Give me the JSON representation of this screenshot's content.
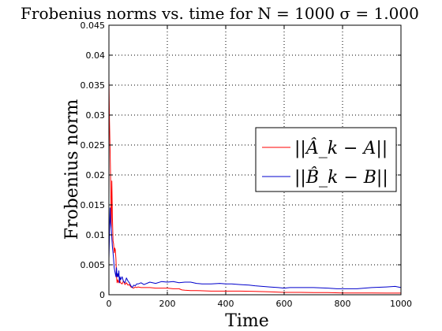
{
  "chart_data": {
    "type": "line",
    "title": "Frobenius norms vs. time for N = 1000 σ = 1.000",
    "xlabel": "Time",
    "ylabel": "Frobenius norm",
    "xlim": [
      0,
      1000
    ],
    "ylim": [
      0,
      0.045
    ],
    "xticks": [
      0,
      200,
      400,
      600,
      800,
      1000
    ],
    "xtick_labels": [
      "0",
      "200",
      "400",
      "600",
      "800",
      "1000"
    ],
    "yticks": [
      0,
      0.005,
      0.01,
      0.015,
      0.02,
      0.025,
      0.03,
      0.035,
      0.04,
      0.045
    ],
    "ytick_labels": [
      "0",
      "0.005",
      "0.01",
      "0.015",
      "0.02",
      "0.025",
      "0.03",
      "0.035",
      "0.04",
      "0.045"
    ],
    "grid": true,
    "legend_position": "right",
    "series": [
      {
        "name": "||Â_k − A||",
        "color": "#ff0000",
        "x": [
          0,
          2,
          4,
          6,
          8,
          10,
          12,
          14,
          16,
          18,
          20,
          22,
          24,
          26,
          28,
          30,
          32,
          34,
          36,
          38,
          40,
          45,
          50,
          55,
          60,
          65,
          70,
          75,
          80,
          85,
          90,
          95,
          100,
          110,
          120,
          140,
          160,
          180,
          200,
          220,
          240,
          250,
          260,
          280,
          300,
          350,
          400,
          450,
          500,
          550,
          600,
          650,
          700,
          750,
          800,
          850,
          900,
          950,
          1000
        ],
        "y": [
          0.036,
          0.029,
          0.024,
          0.019,
          0.011,
          0.019,
          0.013,
          0.009,
          0.0085,
          0.007,
          0.0078,
          0.0075,
          0.006,
          0.003,
          0.002,
          0.0025,
          0.0022,
          0.002,
          0.0028,
          0.0022,
          0.002,
          0.0018,
          0.0023,
          0.0017,
          0.002,
          0.0016,
          0.0017,
          0.0013,
          0.0012,
          0.0011,
          0.0013,
          0.0012,
          0.0013,
          0.0012,
          0.0012,
          0.0012,
          0.0011,
          0.0011,
          0.0011,
          0.001,
          0.001,
          0.0008,
          0.00075,
          0.0007,
          0.0007,
          0.0006,
          0.0006,
          0.0006,
          0.00055,
          0.0005,
          0.0004,
          0.0004,
          0.00035,
          0.00035,
          0.0003,
          0.0003,
          0.0003,
          0.00028,
          0.00028
        ]
      },
      {
        "name": "||B̂_k − B||",
        "color": "#0000cc",
        "x": [
          0,
          2,
          4,
          6,
          8,
          10,
          12,
          14,
          16,
          18,
          20,
          22,
          24,
          26,
          28,
          30,
          32,
          34,
          36,
          38,
          40,
          45,
          50,
          55,
          60,
          65,
          70,
          75,
          80,
          85,
          90,
          95,
          100,
          110,
          120,
          140,
          160,
          180,
          200,
          220,
          240,
          260,
          280,
          300,
          320,
          350,
          380,
          400,
          420,
          450,
          480,
          500,
          550,
          580,
          600,
          620,
          650,
          700,
          750,
          780,
          800,
          850,
          900,
          950,
          980,
          1000
        ],
        "y": [
          0.006,
          0.01,
          0.0145,
          0.012,
          0.011,
          0.0095,
          0.008,
          0.007,
          0.006,
          0.0045,
          0.004,
          0.0035,
          0.003,
          0.0045,
          0.003,
          0.0035,
          0.003,
          0.004,
          0.002,
          0.003,
          0.0025,
          0.003,
          0.0022,
          0.002,
          0.0028,
          0.0023,
          0.002,
          0.0015,
          0.0012,
          0.0016,
          0.0015,
          0.0018,
          0.0018,
          0.002,
          0.0017,
          0.0021,
          0.0019,
          0.0022,
          0.0021,
          0.0022,
          0.002,
          0.0021,
          0.0021,
          0.0019,
          0.0018,
          0.0018,
          0.0019,
          0.0018,
          0.0018,
          0.0017,
          0.0016,
          0.0015,
          0.0013,
          0.0012,
          0.0011,
          0.0012,
          0.0012,
          0.0012,
          0.0011,
          0.001,
          0.001,
          0.001,
          0.0012,
          0.0013,
          0.0014,
          0.0012
        ]
      }
    ]
  }
}
